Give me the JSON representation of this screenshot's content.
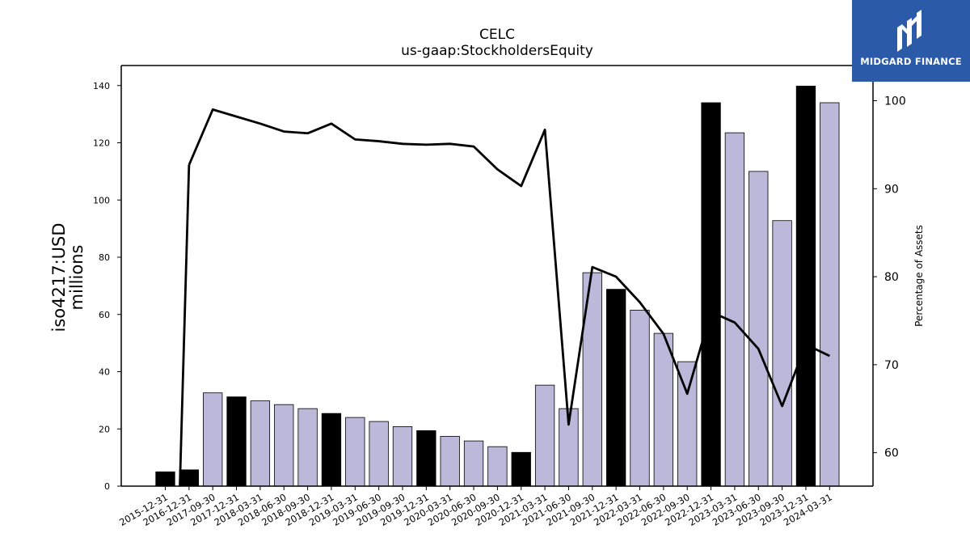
{
  "chart_data": {
    "type": "bar+line",
    "title": "CELC",
    "subtitle": "us-gaap:StockholdersEquity",
    "ylabel_left": "iso4217:USD\nmillions",
    "ylabel_right": "Percentage of Assets",
    "ylim_left": [
      0,
      147
    ],
    "ylim_right": [
      56.2,
      104
    ],
    "yticks_left": [
      0,
      20,
      40,
      60,
      80,
      100,
      120,
      140
    ],
    "yticks_right": [
      60,
      70,
      80,
      90,
      100
    ],
    "categories": [
      "2015-12-31",
      "2016-12-31",
      "2017-09-30",
      "2017-12-31",
      "2018-03-31",
      "2018-06-30",
      "2018-09-30",
      "2018-12-31",
      "2019-03-31",
      "2019-06-30",
      "2019-09-30",
      "2019-12-31",
      "2020-03-31",
      "2020-06-30",
      "2020-09-30",
      "2020-12-31",
      "2021-03-31",
      "2021-06-30",
      "2021-09-30",
      "2021-12-31",
      "2022-03-31",
      "2022-06-30",
      "2022-09-30",
      "2022-12-31",
      "2023-03-31",
      "2023-06-30",
      "2023-09-30",
      "2023-12-31",
      "2024-03-31"
    ],
    "bar_values": [
      5.0,
      5.7,
      32.6,
      31.2,
      29.8,
      28.5,
      27.1,
      25.4,
      24.0,
      22.6,
      20.8,
      19.4,
      17.4,
      15.8,
      13.8,
      11.8,
      35.3,
      27.1,
      74.6,
      68.8,
      61.5,
      53.4,
      43.5,
      134.0,
      123.5,
      110.0,
      92.8,
      139.8,
      134.0
    ],
    "bar_colors": [
      "#000000",
      "#000000",
      "#bcb8da",
      "#000000",
      "#bcb8da",
      "#bcb8da",
      "#bcb8da",
      "#000000",
      "#bcb8da",
      "#bcb8da",
      "#bcb8da",
      "#000000",
      "#bcb8da",
      "#bcb8da",
      "#bcb8da",
      "#000000",
      "#bcb8da",
      "#bcb8da",
      "#bcb8da",
      "#000000",
      "#bcb8da",
      "#bcb8da",
      "#bcb8da",
      "#000000",
      "#bcb8da",
      "#bcb8da",
      "#bcb8da",
      "#000000",
      "#bcb8da"
    ],
    "line_values": [
      null,
      92.7,
      99.0,
      98.2,
      97.4,
      96.5,
      96.3,
      97.4,
      95.6,
      95.4,
      95.1,
      95.0,
      95.1,
      94.8,
      92.2,
      90.3,
      96.7,
      63.2,
      81.1,
      80.0,
      77.1,
      73.5,
      66.7,
      76.0,
      74.8,
      71.8,
      65.3,
      72.3,
      71.0
    ],
    "line_color": "#000000",
    "bar_edge_color": "#000000",
    "grid": false
  },
  "logo": {
    "text": "MIDGARD FINANCE",
    "background": "#2a5aa8",
    "icon": "midgard-logo-icon"
  }
}
